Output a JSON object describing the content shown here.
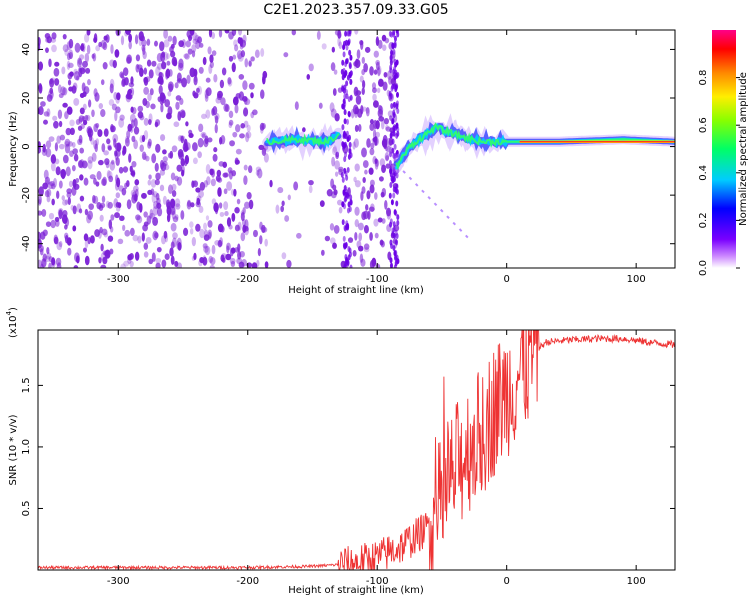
{
  "title": "C2E1.2023.357.09.33.G05",
  "colors": {
    "snr_line": "#ee3333",
    "spectrum_noise": "#7a1fd6",
    "spectrum_peak": "#ff2222"
  },
  "chart_data": [
    {
      "type": "heatmap",
      "xlabel": "Height of straight line (km)",
      "ylabel": "Frequency (Hz)",
      "xlim": [
        -362,
        130
      ],
      "ylim": [
        -50,
        48
      ],
      "xticks": [
        -300,
        -200,
        -100,
        0,
        100
      ],
      "yticks": [
        -40,
        -20,
        0,
        20,
        40
      ],
      "colorbar": {
        "label": "Normalized spectral amplitude",
        "range": [
          0,
          1
        ],
        "ticks": [
          "0.0",
          "0.2",
          "0.4",
          "0.6",
          "0.8"
        ],
        "colormap": "rainbow"
      },
      "description_points": {
        "noise_region_x": [
          -362,
          -85
        ],
        "signal_track": [
          {
            "x": -185,
            "freq": 2
          },
          {
            "x": -160,
            "freq": 3
          },
          {
            "x": -140,
            "freq": 2
          },
          {
            "x": -128,
            "freq": 5
          },
          {
            "x": -85,
            "freq": -8
          },
          {
            "x": -75,
            "freq": 0
          },
          {
            "x": -55,
            "freq": 8
          },
          {
            "x": -40,
            "freq": 5
          },
          {
            "x": -20,
            "freq": 2
          },
          {
            "x": 0,
            "freq": 2
          },
          {
            "x": 40,
            "freq": 2
          },
          {
            "x": 90,
            "freq": 3
          },
          {
            "x": 130,
            "freq": 2
          }
        ]
      }
    },
    {
      "type": "line",
      "xlabel": "Height of straight line (km)",
      "ylabel": "SNR (10 * v/v)",
      "yscale_label": "(x10",
      "yscale_exp": "4",
      "yscale_close": ")",
      "xlim": [
        -362,
        130
      ],
      "ylim": [
        0,
        1.95
      ],
      "xticks": [
        -300,
        -200,
        -100,
        0,
        100
      ],
      "yticks": [
        "0.5",
        "1.0",
        "1.5"
      ],
      "series": [
        {
          "x": [
            -362,
            -300,
            -250,
            -200,
            -150,
            -120,
            -100,
            -80,
            -60,
            -50,
            -40,
            -30,
            -20,
            -10,
            0,
            10,
            20,
            30,
            50,
            70,
            90,
            110,
            130
          ],
          "y": [
            0.02,
            0.02,
            0.02,
            0.02,
            0.03,
            0.05,
            0.1,
            0.2,
            0.35,
            0.55,
            0.8,
            1.0,
            1.1,
            1.3,
            1.45,
            1.6,
            1.75,
            1.85,
            1.87,
            1.88,
            1.88,
            1.85,
            1.83
          ]
        }
      ]
    }
  ]
}
